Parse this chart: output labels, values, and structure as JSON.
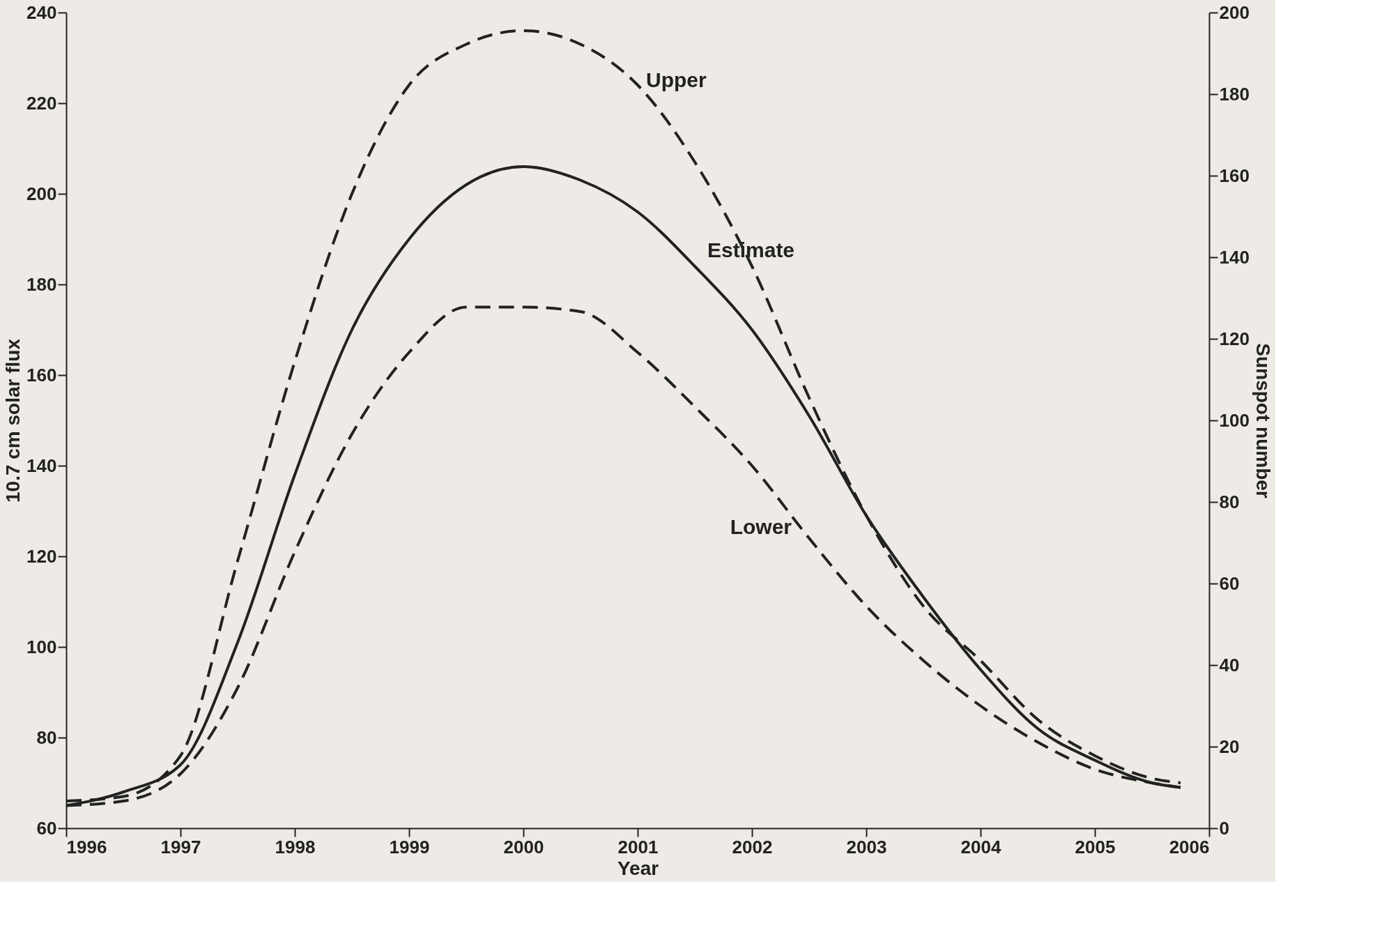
{
  "chart_data": {
    "type": "line",
    "xlabel": "Year",
    "ylabel": "10.7 cm solar flux",
    "y2label": "Sunspot number",
    "xlim": [
      1996,
      2006
    ],
    "xticks": [
      1996,
      1997,
      1998,
      1999,
      2000,
      2001,
      2002,
      2003,
      2004,
      2005,
      2006
    ],
    "ylim": [
      60,
      240
    ],
    "yticks": [
      60,
      80,
      100,
      120,
      140,
      160,
      180,
      200,
      220,
      240
    ],
    "y2lim": [
      0,
      200
    ],
    "y2ticks": [
      0,
      20,
      40,
      60,
      80,
      100,
      120,
      140,
      160,
      180,
      200
    ],
    "x": [
      1996,
      1996.5,
      1997,
      1997.5,
      1998,
      1998.5,
      1999,
      1999.5,
      2000,
      2000.5,
      2001,
      2001.5,
      2002,
      2002.5,
      2003,
      2003.5,
      2004,
      2004.5,
      2005,
      2005.5,
      2005.75
    ],
    "series": [
      {
        "name": "Upper",
        "color": "#222222",
        "line_style": "dashed",
        "values": [
          66,
          67,
          76,
          119,
          163,
          200,
          224,
          233,
          236,
          233,
          224,
          207,
          184,
          155,
          129,
          109,
          97,
          84,
          76,
          71,
          70
        ]
      },
      {
        "name": "Estimate",
        "color": "#222222",
        "line_style": "solid",
        "values": [
          65,
          68,
          74,
          101,
          138,
          170,
          190,
          202,
          206,
          203,
          196,
          184,
          170,
          151,
          129,
          111,
          95,
          82,
          75,
          70,
          69
        ]
      },
      {
        "name": "Lower",
        "color": "#222222",
        "line_style": "dashed",
        "values": [
          65,
          66,
          72,
          91,
          121,
          147,
          165,
          175,
          175,
          174,
          165,
          153,
          140,
          124,
          109,
          97,
          87,
          79,
          73,
          70,
          69
        ]
      }
    ],
    "grid": false
  }
}
